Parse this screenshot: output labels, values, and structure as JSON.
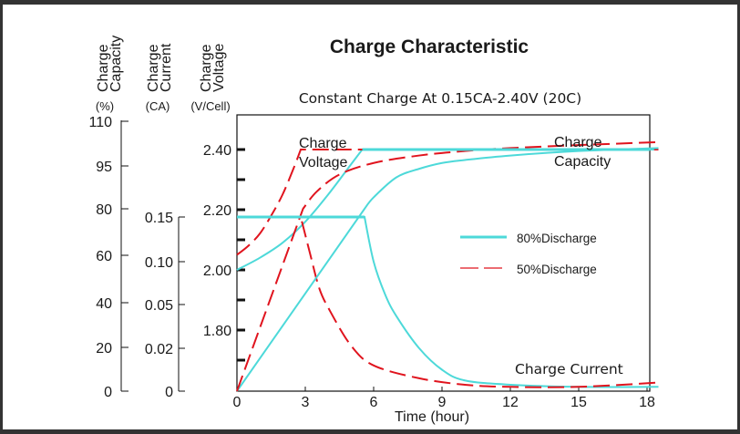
{
  "chart_data": {
    "type": "line",
    "title": "Charge Characteristic",
    "subtitle": "Constant Charge At 0.15CA-2.40V  (20C)",
    "xlabel": "Time (hour)",
    "xlim": [
      0,
      18.5
    ],
    "x_ticks": [
      0,
      3,
      6,
      9,
      12,
      15,
      18
    ],
    "grid": false,
    "axes": {
      "capacity": {
        "label_line1": "Charge",
        "label_line2": "Capacity",
        "unit": "(%)",
        "ticks": [
          "110",
          "95",
          "80",
          "60",
          "40",
          "20",
          "0"
        ]
      },
      "current": {
        "label_line1": "Charge",
        "label_line2": "Current",
        "unit": "(CA)",
        "ticks": [
          "0.15",
          "0.10",
          "0.05",
          "0.02",
          "0"
        ]
      },
      "voltage": {
        "label_line1": "Charge",
        "label_line2": "Voltage",
        "unit": "(V/Cell)",
        "ticks": [
          "2.40",
          "2.20",
          "2.00",
          "1.80"
        ],
        "ylim": [
          1.6,
          2.5
        ]
      }
    },
    "legend": {
      "placement": "right-center",
      "entries": [
        {
          "name": "80%Discharge",
          "color": "#4dd9d9",
          "style": "solid"
        },
        {
          "name": "50%Discharge",
          "color": "#e0141e",
          "style": "dashed"
        }
      ]
    },
    "annotations": {
      "voltage_label_1": "Charge",
      "voltage_label_2": "Voltage",
      "capacity_label_1": "Charge",
      "capacity_label_2": "Capacity",
      "current_label": "Charge Current"
    },
    "series": [
      {
        "name": "80%Discharge voltage",
        "color": "#4dd9d9",
        "axis": "voltage",
        "x": [
          0,
          1,
          2,
          3,
          4,
          5,
          5.5,
          18.5
        ],
        "y": [
          2.0,
          2.04,
          2.09,
          2.16,
          2.25,
          2.35,
          2.4,
          2.4
        ]
      },
      {
        "name": "50%Discharge voltage",
        "color": "#e0141e",
        "axis": "voltage",
        "x": [
          0,
          0.5,
          1,
          1.5,
          2,
          2.5,
          2.8,
          18.5
        ],
        "y": [
          2.05,
          2.08,
          2.12,
          2.18,
          2.25,
          2.34,
          2.4,
          2.4
        ]
      },
      {
        "name": "80%Discharge current",
        "color": "#4dd9d9",
        "axis": "current",
        "x": [
          0,
          5.6,
          6,
          6.5,
          7,
          8,
          9,
          10,
          12,
          15,
          18.5
        ],
        "y": [
          0.15,
          0.15,
          0.1,
          0.062,
          0.042,
          0.02,
          0.01,
          0.005,
          0.003,
          0.002,
          0.002
        ]
      },
      {
        "name": "50%Discharge current",
        "color": "#e0141e",
        "axis": "current",
        "x": [
          0,
          2.8,
          3.2,
          3.6,
          4,
          5,
          6,
          8,
          10,
          12,
          15,
          18.5
        ],
        "y": [
          0.15,
          0.15,
          0.11,
          0.07,
          0.048,
          0.022,
          0.012,
          0.006,
          0.003,
          0.002,
          0.002,
          0.004
        ]
      },
      {
        "name": "80%Discharge capacity",
        "color": "#4dd9d9",
        "axis": "capacity",
        "x": [
          0,
          5.6,
          6,
          7,
          8,
          9,
          10,
          12,
          15,
          18.5
        ],
        "y": [
          0,
          80,
          84,
          91,
          94,
          96,
          97,
          98.5,
          100,
          101
        ]
      },
      {
        "name": "50%Discharge capacity",
        "color": "#e0141e",
        "axis": "capacity",
        "x": [
          0,
          2.9,
          3.5,
          4.5,
          6,
          8,
          10,
          12,
          15,
          18.5
        ],
        "y": [
          0,
          80,
          86,
          92,
          96,
          98.5,
          100,
          101,
          102,
          103
        ]
      }
    ]
  }
}
